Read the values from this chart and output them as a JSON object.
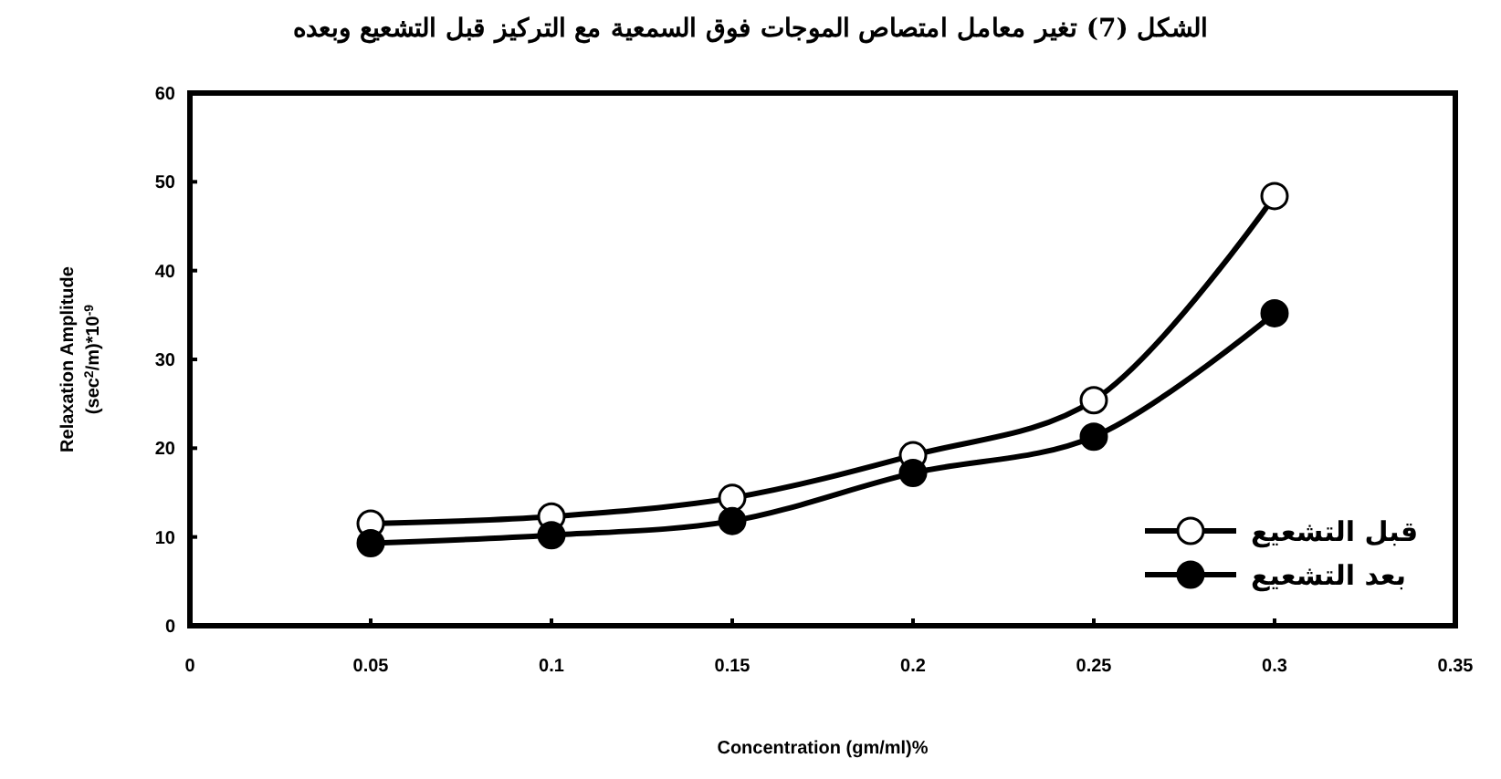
{
  "chart_data": {
    "type": "line",
    "title": "الشكل (7) تغير معامل امتصاص الموجات فوق السمعية مع التركيز قبل التشعيع وبعده",
    "xlabel": "Concentration (gm/ml)%",
    "ylabel": "Relaxation Amplitude\n(sec$^{2}$/m)*10$^{-9}$",
    "x": [
      0.05,
      0.1,
      0.15,
      0.2,
      0.25,
      0.3
    ],
    "series": [
      {
        "name": "قبل التشعيع",
        "color": "#000000",
        "values": [
          11.5,
          12.3,
          14.4,
          19.2,
          25.4,
          48.4
        ]
      },
      {
        "name": "بعد التشعيع",
        "color": "#000000",
        "values": [
          9.3,
          10.2,
          11.8,
          17.2,
          21.3,
          35.2
        ]
      }
    ],
    "xlim": [
      0,
      0.35
    ],
    "xticks": [
      0,
      0.05,
      0.1,
      0.15,
      0.2,
      0.25,
      0.3,
      0.35
    ],
    "ylim": [
      0,
      60
    ],
    "yticks": [
      0,
      10,
      20,
      30,
      40,
      50,
      60
    ],
    "marker": "circle",
    "line_style": "solid",
    "legend": "bottom right",
    "grid": false
  }
}
